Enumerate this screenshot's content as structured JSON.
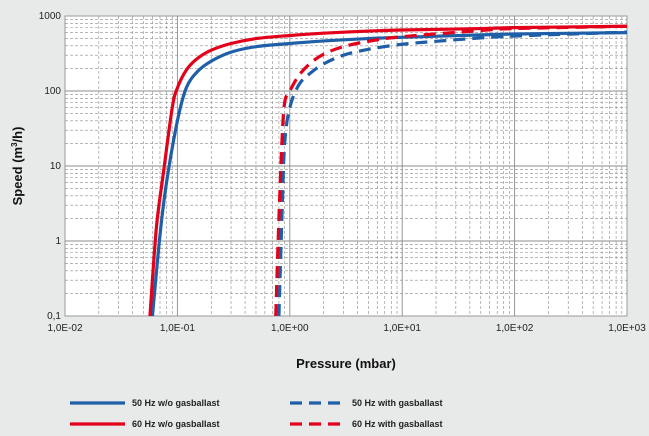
{
  "chart_data": {
    "type": "line",
    "xscale": "log",
    "yscale": "log",
    "xlabel": "Pressure (mbar)",
    "ylabel_pre": "Speed (m",
    "ylabel_sup": "3",
    "ylabel_post": "/h)",
    "xlim": [
      0.01,
      1000
    ],
    "ylim": [
      0.1,
      1000
    ],
    "grid": true,
    "x_ticks": [
      0.01,
      0.1,
      1,
      10,
      100,
      1000
    ],
    "x_tick_labels": [
      "1,0E-02",
      "1,0E-01",
      "1,0E+00",
      "1,0E+01",
      "1,0E+02",
      "1,0E+03"
    ],
    "y_ticks": [
      0.1,
      1,
      10,
      100,
      1000
    ],
    "y_tick_labels": [
      "0,1",
      "1",
      "10",
      "100",
      "1000"
    ],
    "legend_position": "bottom",
    "series": [
      {
        "name": "50 Hz w/o gasballast",
        "color": "#1f5fa8",
        "style": "solid",
        "x": [
          0.06,
          0.07,
          0.08,
          0.1,
          0.12,
          0.15,
          0.2,
          0.3,
          0.5,
          1,
          2,
          5,
          10,
          50,
          100,
          1000
        ],
        "y": [
          0.1,
          1.2,
          6,
          40,
          110,
          180,
          250,
          330,
          390,
          430,
          465,
          500,
          520,
          560,
          575,
          600
        ]
      },
      {
        "name": "50 Hz with gasballast",
        "color": "#1f5fa8",
        "style": "dashed",
        "x": [
          0.8,
          0.85,
          0.9,
          1,
          1.2,
          1.5,
          2,
          3,
          5,
          10,
          20,
          50,
          100,
          1000
        ],
        "y": [
          0.1,
          2,
          20,
          60,
          120,
          170,
          230,
          300,
          360,
          420,
          460,
          510,
          540,
          610
        ]
      },
      {
        "name": "60 Hz w/o gasballast",
        "color": "#e2001a",
        "style": "solid",
        "x": [
          0.057,
          0.065,
          0.075,
          0.09,
          0.1,
          0.12,
          0.15,
          0.2,
          0.3,
          0.5,
          1,
          2,
          5,
          10,
          50,
          100,
          1000
        ],
        "y": [
          0.1,
          1.5,
          8,
          60,
          110,
          190,
          270,
          350,
          430,
          500,
          550,
          590,
          630,
          650,
          680,
          700,
          730
        ]
      },
      {
        "name": "60 Hz with gasballast",
        "color": "#e2001a",
        "style": "dashed",
        "x": [
          0.75,
          0.8,
          0.85,
          0.9,
          1,
          1.2,
          1.5,
          2,
          3,
          5,
          10,
          50,
          100,
          1000
        ],
        "y": [
          0.1,
          2,
          20,
          70,
          100,
          160,
          230,
          310,
          390,
          460,
          530,
          640,
          680,
          730
        ]
      }
    ]
  }
}
